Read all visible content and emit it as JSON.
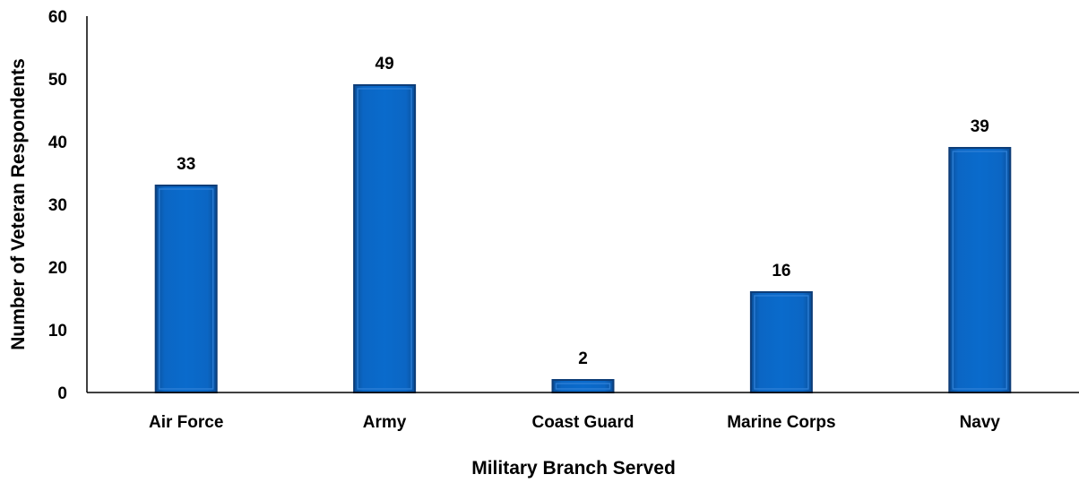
{
  "chart_data": {
    "type": "bar",
    "categories": [
      "Air Force",
      "Army",
      "Coast Guard",
      "Marine Corps",
      "Navy"
    ],
    "values": [
      33,
      49,
      2,
      16,
      39
    ],
    "data_labels": [
      "33",
      "49",
      "2",
      "16",
      "39"
    ],
    "title": "",
    "xlabel": "Military Branch Served",
    "ylabel": "Number of Veteran Respondents",
    "ylim": [
      0,
      60
    ],
    "yticks": [
      0,
      10,
      20,
      30,
      40,
      50,
      60
    ],
    "grid": false,
    "legend": "none",
    "bar_color": "#0a66c2"
  }
}
